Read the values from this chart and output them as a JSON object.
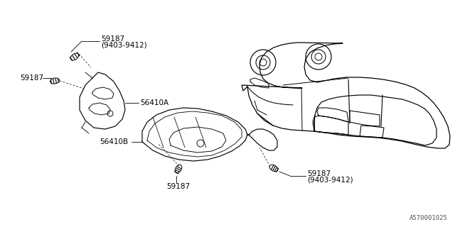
{
  "bg_color": "#ffffff",
  "line_color": "#000000",
  "text_color": "#000000",
  "watermark": "A570001025",
  "guard_A_label": "56410A",
  "guard_B_label": "56410B",
  "bolt_label": "59187",
  "bolt_date": "(9403-9412)",
  "font_size": 7.5,
  "lw": 0.8
}
